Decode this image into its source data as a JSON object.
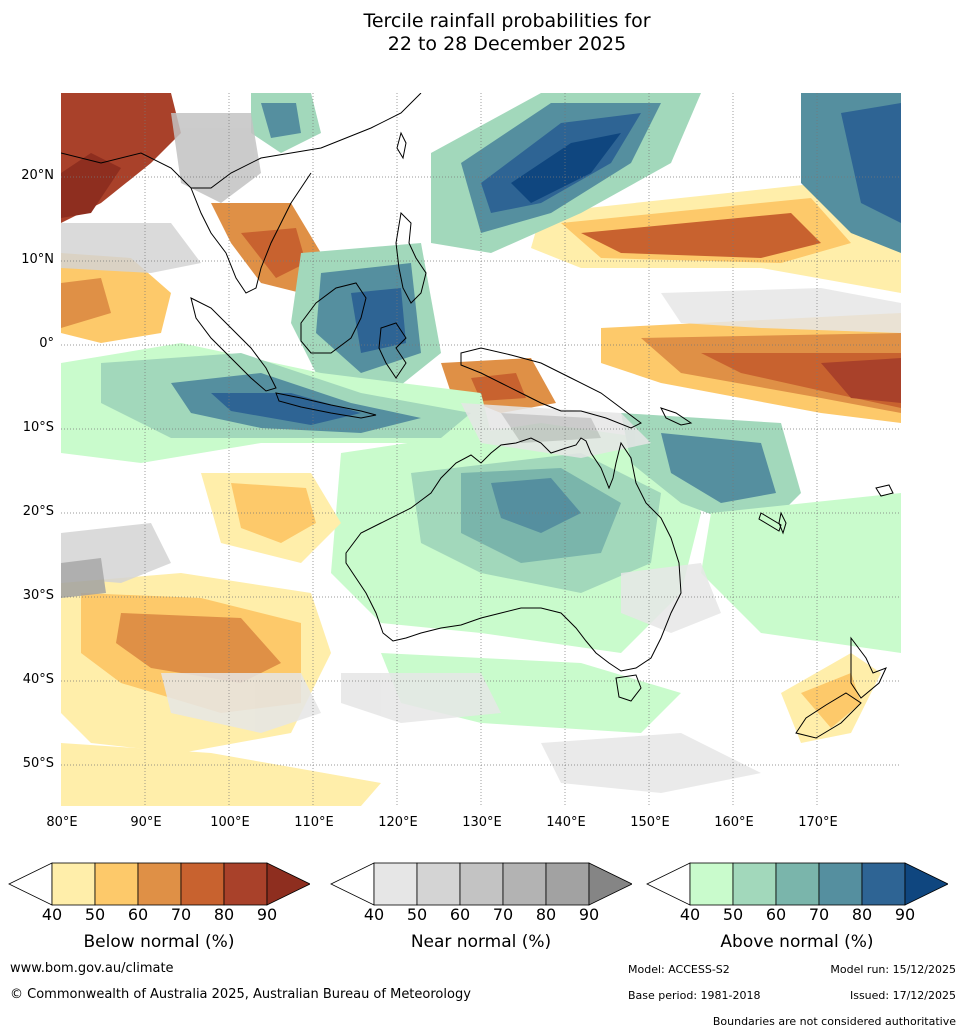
{
  "title": {
    "line1": "Tercile rainfall probabilities for",
    "line2": "22 to 28 December 2025"
  },
  "map": {
    "projection": "equirectangular",
    "lon_range": [
      80,
      180
    ],
    "lat_range": [
      -55,
      30
    ],
    "lat_labels": [
      "20°N",
      "10°N",
      "0°",
      "10°S",
      "20°S",
      "30°S",
      "40°S",
      "50°S"
    ],
    "lon_labels": [
      "80°E",
      "90°E",
      "100°E",
      "110°E",
      "120°E",
      "130°E",
      "140°E",
      "150°E",
      "160°E",
      "170°E"
    ],
    "gridlines": "dotted",
    "regions": "Australia, New Zealand, Indonesia, Papua New Guinea, Philippines, Southeast Asia, Pacific islands"
  },
  "colorbars": [
    {
      "name": "below",
      "title": "Below normal (%)",
      "ticks": [
        "40",
        "50",
        "60",
        "70",
        "80",
        "90"
      ],
      "colors": [
        "#ffffff",
        "#ffeeaa",
        "#fdc96a",
        "#df9046",
        "#c8622f",
        "#a9412a",
        "#8e2e1f"
      ]
    },
    {
      "name": "near",
      "title": "Near normal (%)",
      "ticks": [
        "40",
        "50",
        "60",
        "70",
        "80",
        "90"
      ],
      "colors": [
        "#ffffff",
        "#e6e6e6",
        "#d4d4d4",
        "#c3c3c3",
        "#b3b3b3",
        "#a2a2a2",
        "#858585"
      ]
    },
    {
      "name": "above",
      "title": "Above normal (%)",
      "ticks": [
        "40",
        "50",
        "60",
        "70",
        "80",
        "90"
      ],
      "colors": [
        "#ffffff",
        "#c9fbcc",
        "#a2d8bb",
        "#7ab5ab",
        "#558f9f",
        "#2e6494",
        "#0f467f"
      ]
    }
  ],
  "footer": {
    "url": "www.bom.gov.au/climate",
    "copyright": "© Commonwealth of Australia 2025, Australian Bureau of Meteorology",
    "model": "Model: ACCESS-S2",
    "model_run": "Model run: 15/12/2025",
    "base_period": "Base period: 1981-2018",
    "issued": "Issued: 17/12/2025",
    "boundaries_note": "Boundaries are not considered authoritative"
  }
}
